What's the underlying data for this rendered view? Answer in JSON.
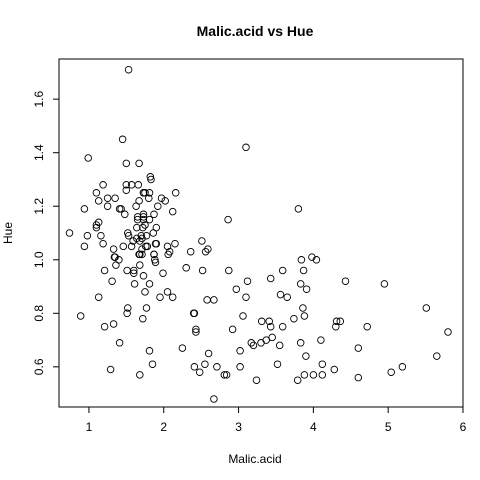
{
  "chart_data": {
    "type": "scatter",
    "title": "Malic.acid vs Hue",
    "xlabel": "Malic.acid",
    "ylabel": "Hue",
    "xlim": [
      0.6,
      6.0
    ],
    "ylim": [
      0.45,
      1.75
    ],
    "xticks": [
      1,
      2,
      3,
      4,
      5,
      6
    ],
    "yticks": [
      0.6,
      0.8,
      1.0,
      1.2,
      1.4,
      1.6
    ],
    "grid": false,
    "legend": "none",
    "marker": "open-circle",
    "color": "#000000",
    "points": [
      [
        1.71,
        1.04
      ],
      [
        1.78,
        1.05
      ],
      [
        2.36,
        1.03
      ],
      [
        1.95,
        0.86
      ],
      [
        2.59,
        1.04
      ],
      [
        1.76,
        1.05
      ],
      [
        1.87,
        1.02
      ],
      [
        2.15,
        1.06
      ],
      [
        1.64,
        1.08
      ],
      [
        1.35,
        1.01
      ],
      [
        2.16,
        1.25
      ],
      [
        1.48,
        1.17
      ],
      [
        1.73,
        1.15
      ],
      [
        1.73,
        1.25
      ],
      [
        1.87,
        1.17
      ],
      [
        1.81,
        1.15
      ],
      [
        1.92,
        1.2
      ],
      [
        1.57,
        1.28
      ],
      [
        1.59,
        1.07
      ],
      [
        3.1,
        1.42
      ],
      [
        1.63,
        1.2
      ],
      [
        3.8,
        1.19
      ],
      [
        1.86,
        1.1
      ],
      [
        1.6,
        0.95
      ],
      [
        1.81,
        0.91
      ],
      [
        2.05,
        0.88
      ],
      [
        1.77,
        0.82
      ],
      [
        1.72,
        1.12
      ],
      [
        1.9,
        1.06
      ],
      [
        1.68,
        1.02
      ],
      [
        1.5,
        1.36
      ],
      [
        1.66,
        1.28
      ],
      [
        1.83,
        1.3
      ],
      [
        1.53,
        1.09
      ],
      [
        1.8,
        1.23
      ],
      [
        1.81,
        1.25
      ],
      [
        1.64,
        1.12
      ],
      [
        1.65,
        1.16
      ],
      [
        1.5,
        1.26
      ],
      [
        3.59,
        0.96
      ],
      [
        1.71,
        1.08
      ],
      [
        3.84,
        1.0
      ],
      [
        1.89,
        1.06
      ],
      [
        3.98,
        1.01
      ],
      [
        1.77,
        1.09
      ],
      [
        4.04,
        1.0
      ],
      [
        3.59,
        0.75
      ],
      [
        1.68,
        0.98
      ],
      [
        2.02,
        1.22
      ],
      [
        1.73,
        1.25
      ],
      [
        1.73,
        1.17
      ],
      [
        1.65,
        1.15
      ],
      [
        1.75,
        1.25
      ],
      [
        1.9,
        1.12
      ],
      [
        1.67,
        1.22
      ],
      [
        1.73,
        1.16
      ],
      [
        1.7,
        1.09
      ],
      [
        1.97,
        1.23
      ],
      [
        1.43,
        1.19
      ],
      [
        0.94,
        1.05
      ],
      [
        1.1,
        1.25
      ],
      [
        1.36,
        0.98
      ],
      [
        1.25,
        1.23
      ],
      [
        1.13,
        1.22
      ],
      [
        1.67,
        1.36
      ],
      [
        1.5,
        1.28
      ],
      [
        0.99,
        1.38
      ],
      [
        3.87,
        0.96
      ],
      [
        1.45,
        1.45
      ],
      [
        1.1,
        1.12
      ],
      [
        1.35,
        1.23
      ],
      [
        1.61,
        0.91
      ],
      [
        1.53,
        1.71
      ],
      [
        1.41,
        1.19
      ],
      [
        1.33,
        1.04
      ],
      [
        1.71,
        1.02
      ],
      [
        0.89,
        0.79
      ],
      [
        1.1,
        1.13
      ],
      [
        1.46,
        1.05
      ],
      [
        1.73,
        0.94
      ],
      [
        1.51,
        0.96
      ],
      [
        1.34,
        1.01
      ],
      [
        2.08,
        1.03
      ],
      [
        1.88,
        1.0
      ],
      [
        0.94,
        1.19
      ],
      [
        1.67,
        1.02
      ],
      [
        1.75,
        0.88
      ],
      [
        1.82,
        1.31
      ],
      [
        1.99,
        0.95
      ],
      [
        2.05,
        1.05
      ],
      [
        1.4,
        1.0
      ],
      [
        1.19,
        1.06
      ],
      [
        0.74,
        1.1
      ],
      [
        1.52,
        1.1
      ],
      [
        1.25,
        1.2
      ],
      [
        2.06,
        1.02
      ],
      [
        1.19,
        1.28
      ],
      [
        1.16,
        1.09
      ],
      [
        2.51,
        1.07
      ],
      [
        1.68,
        1.07
      ],
      [
        3.43,
        0.75
      ],
      [
        2.12,
        1.18
      ],
      [
        1.21,
        0.75
      ],
      [
        1.51,
        0.8
      ],
      [
        3.74,
        0.78
      ],
      [
        2.67,
        0.85
      ],
      [
        1.52,
        0.82
      ],
      [
        2.86,
        1.15
      ],
      [
        1.87,
        1.02
      ],
      [
        1.21,
        0.96
      ],
      [
        1.33,
        0.76
      ],
      [
        1.13,
        0.86
      ],
      [
        2.56,
        1.03
      ],
      [
        2.4,
        0.8
      ],
      [
        1.57,
        1.05
      ],
      [
        1.89,
        0.99
      ],
      [
        0.98,
        1.09
      ],
      [
        1.31,
        0.92
      ],
      [
        1.75,
        1.13
      ],
      [
        1.13,
        1.14
      ],
      [
        1.68,
        0.57
      ],
      [
        2.58,
        0.85
      ],
      [
        2.41,
        0.6
      ],
      [
        1.81,
        0.66
      ],
      [
        2.43,
        0.73
      ],
      [
        1.6,
        0.96
      ],
      [
        3.12,
        0.92
      ],
      [
        3.45,
        0.71
      ],
      [
        2.52,
        0.96
      ],
      [
        2.43,
        0.74
      ],
      [
        4.1,
        0.7
      ],
      [
        3.06,
        0.79
      ],
      [
        1.41,
        0.69
      ],
      [
        2.6,
        0.65
      ],
      [
        2.81,
        0.57
      ],
      [
        1.29,
        0.59
      ],
      [
        3.31,
        0.77
      ],
      [
        2.25,
        0.67
      ],
      [
        2.84,
        0.57
      ],
      [
        4.6,
        0.56
      ],
      [
        1.85,
        0.61
      ],
      [
        3.83,
        0.69
      ],
      [
        3.3,
        0.69
      ],
      [
        2.55,
        0.61
      ],
      [
        3.52,
        0.61
      ],
      [
        2.48,
        0.58
      ],
      [
        3.79,
        0.55
      ],
      [
        2.71,
        0.6
      ],
      [
        2.67,
        0.48
      ],
      [
        3.55,
        0.68
      ],
      [
        3.86,
        0.82
      ],
      [
        4.43,
        0.92
      ],
      [
        3.2,
        0.68
      ],
      [
        3.37,
        0.7
      ],
      [
        3.02,
        0.66
      ],
      [
        2.92,
        0.74
      ],
      [
        3.17,
        0.69
      ],
      [
        3.88,
        0.79
      ],
      [
        1.72,
        0.78
      ],
      [
        2.12,
        0.86
      ],
      [
        3.9,
        0.64
      ],
      [
        4.28,
        0.59
      ],
      [
        4.95,
        0.91
      ],
      [
        4.72,
        0.75
      ],
      [
        5.51,
        0.82
      ],
      [
        5.65,
        0.64
      ],
      [
        5.8,
        0.73
      ],
      [
        3.88,
        0.57
      ],
      [
        5.04,
        0.58
      ],
      [
        5.19,
        0.6
      ],
      [
        4.12,
        0.57
      ],
      [
        3.24,
        0.55
      ],
      [
        3.02,
        0.6
      ],
      [
        4.31,
        0.77
      ],
      [
        4.6,
        0.67
      ],
      [
        3.91,
        0.89
      ],
      [
        4.3,
        0.75
      ],
      [
        3.65,
        0.86
      ],
      [
        3.43,
        0.93
      ],
      [
        3.56,
        0.87
      ],
      [
        4.0,
        0.57
      ],
      [
        4.12,
        0.61
      ],
      [
        4.36,
        0.77
      ],
      [
        3.83,
        0.91
      ],
      [
        3.1,
        0.86
      ],
      [
        2.41,
        0.8
      ],
      [
        2.87,
        0.96
      ],
      [
        2.3,
        0.97
      ],
      [
        3.41,
        0.77
      ],
      [
        2.97,
        0.89
      ]
    ]
  }
}
